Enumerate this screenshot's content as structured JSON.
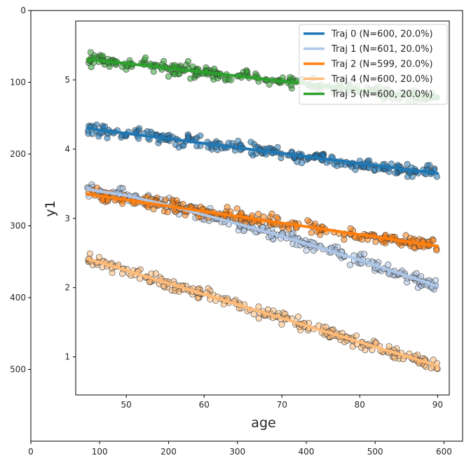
{
  "outer_axes": {
    "x_ticks": [
      "0",
      "100",
      "200",
      "300",
      "400",
      "500",
      "600"
    ],
    "x_tick_values": [
      0,
      100,
      200,
      300,
      400,
      500,
      600
    ],
    "y_ticks": [
      "0",
      "100",
      "200",
      "300",
      "400",
      "500"
    ],
    "y_tick_values": [
      0,
      100,
      200,
      300,
      400,
      500
    ],
    "xlim": [
      0,
      627
    ],
    "ylim": [
      0,
      600
    ]
  },
  "chart_data": {
    "type": "scatter",
    "xlabel": "age",
    "ylabel": "y1",
    "xlim": [
      43.5,
      91.5
    ],
    "ylim": [
      0.45,
      5.85
    ],
    "x_ticks": [
      50,
      60,
      70,
      80,
      90
    ],
    "y_ticks": [
      1,
      2,
      3,
      4,
      5
    ],
    "grid": false,
    "legend_position": "top-right",
    "series": [
      {
        "name": "Traj 0 (N=600, 20.0%)",
        "color": "#1f77b4",
        "x": [
          45,
          90
        ],
        "y": [
          4.3,
          3.65
        ]
      },
      {
        "name": "Traj 1 (N=601, 20.0%)",
        "color": "#aec7e8",
        "x": [
          45,
          50,
          55,
          60,
          65,
          70,
          75,
          80,
          85,
          90
        ],
        "y": [
          3.42,
          3.33,
          3.2,
          3.05,
          2.9,
          2.74,
          2.57,
          2.4,
          2.21,
          2.02
        ]
      },
      {
        "name": "Traj 2 (N=599, 20.0%)",
        "color": "#ff7f0e",
        "x": [
          45,
          90
        ],
        "y": [
          3.35,
          2.6
        ]
      },
      {
        "name": "Traj 4 (N=600, 20.0%)",
        "color": "#ffbb78",
        "x": [
          45,
          90
        ],
        "y": [
          2.42,
          0.87
        ]
      },
      {
        "name": "Traj 5 (N=600, 20.0%)",
        "color": "#2ca02c",
        "x": [
          45,
          90
        ],
        "y": [
          5.3,
          4.73
        ]
      }
    ]
  }
}
